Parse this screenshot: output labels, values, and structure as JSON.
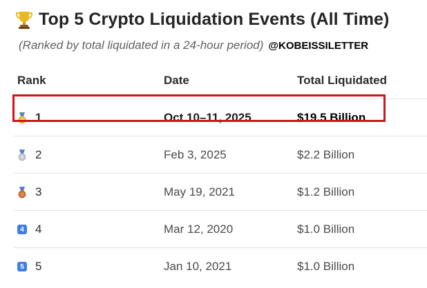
{
  "header": {
    "title": "Top 5 Crypto Liquidation Events (All Time)",
    "title_icon": "trophy-icon",
    "subtitle": "(Ranked by total liquidated in a 24-hour period)",
    "handle": "@KOBEISSILETTER"
  },
  "table": {
    "columns": [
      "Rank",
      "Date",
      "Total Liquidated"
    ],
    "rows": [
      {
        "rank": "1",
        "icon": "gold-medal-icon",
        "date": "Oct 10–11, 2025",
        "total": "$19.5 Billion",
        "highlighted": true
      },
      {
        "rank": "2",
        "icon": "silver-medal-icon",
        "date": "Feb 3, 2025",
        "total": "$2.2 Billion"
      },
      {
        "rank": "3",
        "icon": "bronze-medal-icon",
        "date": "May 19, 2021",
        "total": "$1.2 Billion"
      },
      {
        "rank": "4",
        "icon": "keycap-4-icon",
        "icon_text": "4",
        "date": "Mar 12, 2020",
        "total": "$1.0 Billion"
      },
      {
        "rank": "5",
        "icon": "keycap-5-icon",
        "icon_text": "5",
        "date": "Jan 10, 2021",
        "total": "$1.0 Billion"
      }
    ]
  },
  "colors": {
    "highlight_border": "#d1121b",
    "gold": "#e8b923",
    "silver": "#b9bcc4",
    "bronze": "#c7692e",
    "ribbon": "#5b7fd1",
    "keycap": "#3f7ee8"
  }
}
